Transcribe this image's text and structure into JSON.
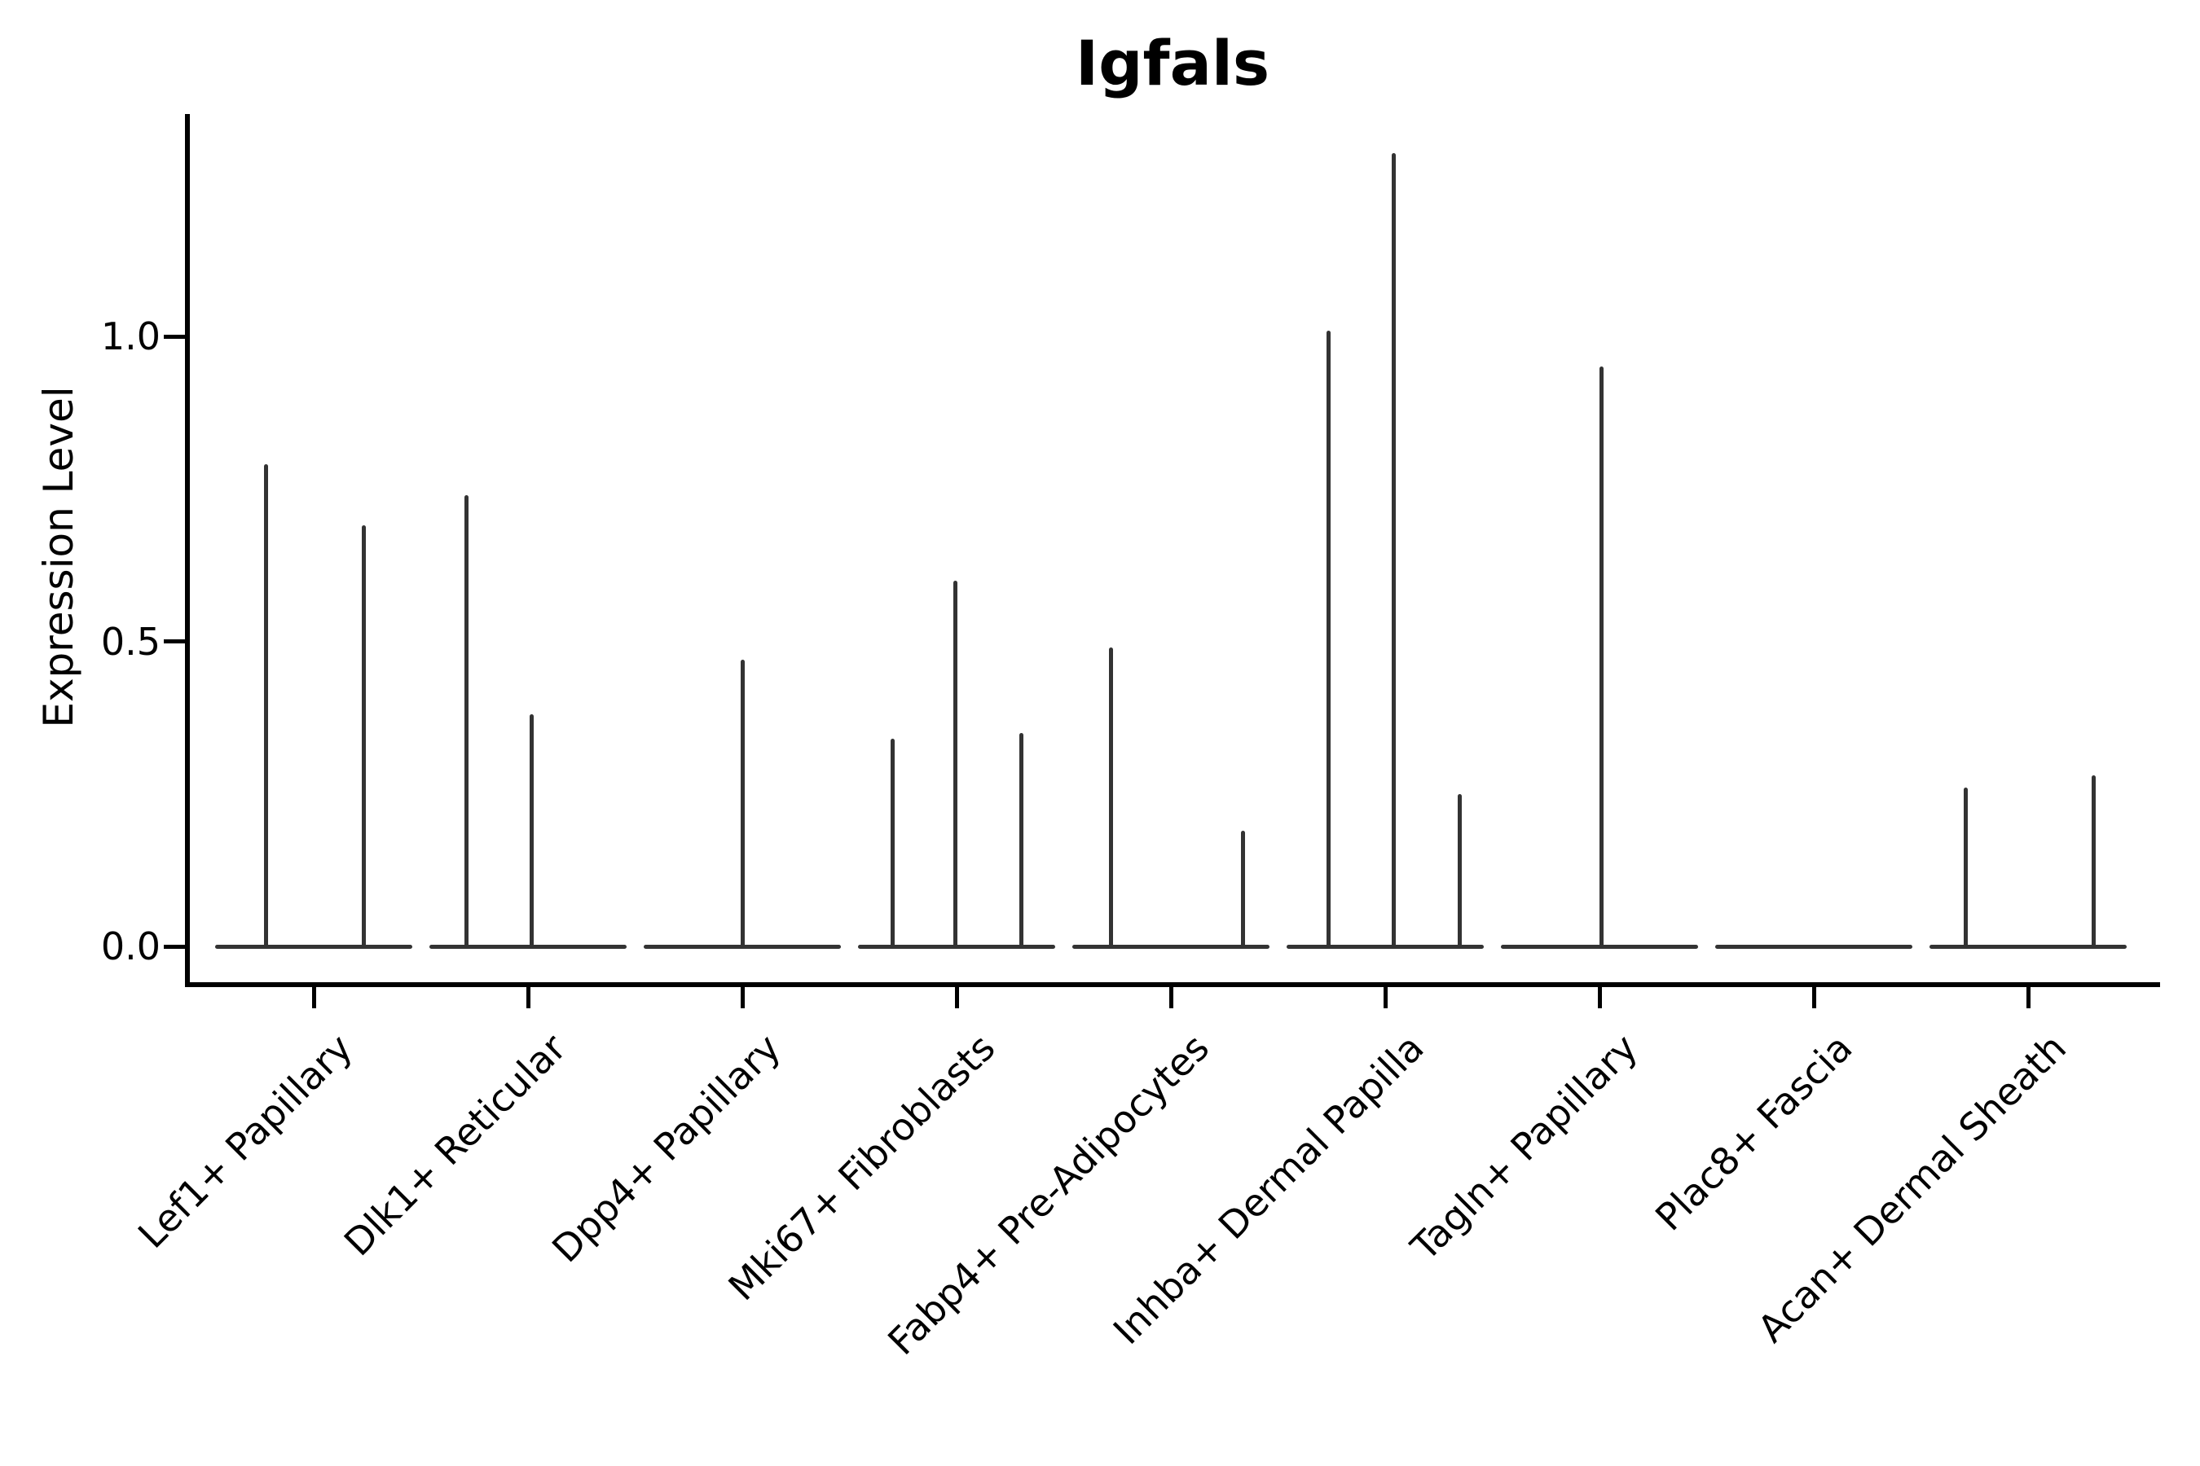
{
  "title": "Igfals",
  "y_axis": {
    "label": "Expression Level",
    "ticks": [
      "0.0",
      "0.5",
      "1.0"
    ]
  },
  "colors": {
    "violin_stroke": "#333333",
    "axis": "#000000",
    "text": "#000000",
    "background": "#ffffff"
  },
  "chart_data": {
    "type": "violin",
    "title": "Igfals",
    "xlabel": "",
    "ylabel": "Expression Level",
    "ytick_values": [
      0.0,
      0.5,
      1.0
    ],
    "ylim": [
      -0.06,
      1.36
    ],
    "grid": false,
    "legend": "none",
    "description": "Single-cell expression violin plot; each category is a flat violin at 0 expression with thin vertical spikes marking the few expressing cells; spike dx is the horizontal pixel offset from the category center.",
    "categories": [
      "Lef1+ Papillary",
      "Dlk1+ Reticular",
      "Dpp4+ Papillary",
      "Mki67+ Fibroblasts",
      "Fabp4+ Pre-Adipocytes",
      "Inhba+ Dermal Papilla",
      "Tagln+ Papillary",
      "Plac8+ Fascia",
      "Acan+ Dermal Sheath"
    ],
    "series": [
      {
        "name": "Lef1+ Papillary",
        "spikes": [
          {
            "dx": -59,
            "value": 0.79
          },
          {
            "dx": 61,
            "value": 0.69
          }
        ]
      },
      {
        "name": "Dlk1+ Reticular",
        "spikes": [
          {
            "dx": -76,
            "value": 0.74
          },
          {
            "dx": 4,
            "value": 0.38
          }
        ]
      },
      {
        "name": "Dpp4+ Papillary",
        "spikes": [
          {
            "dx": 0,
            "value": 0.47
          }
        ]
      },
      {
        "name": "Mki67+ Fibroblasts",
        "spikes": [
          {
            "dx": -79,
            "value": 0.34
          },
          {
            "dx": -2,
            "value": 0.6
          },
          {
            "dx": 79,
            "value": 0.35
          }
        ]
      },
      {
        "name": "Fabp4+ Pre-Adipocytes",
        "spikes": [
          {
            "dx": -74,
            "value": 0.49
          },
          {
            "dx": 88,
            "value": 0.19
          }
        ]
      },
      {
        "name": "Inhba+ Dermal Papilla",
        "spikes": [
          {
            "dx": -70,
            "value": 1.01
          },
          {
            "dx": 10,
            "value": 1.3
          },
          {
            "dx": 91,
            "value": 0.25
          }
        ]
      },
      {
        "name": "Tagln+ Papillary",
        "spikes": [
          {
            "dx": 2,
            "value": 0.95
          }
        ]
      },
      {
        "name": "Plac8+ Fascia",
        "spikes": []
      },
      {
        "name": "Acan+ Dermal Sheath",
        "spikes": [
          {
            "dx": -77,
            "value": 0.26
          },
          {
            "dx": 80,
            "value": 0.28
          }
        ]
      }
    ]
  }
}
